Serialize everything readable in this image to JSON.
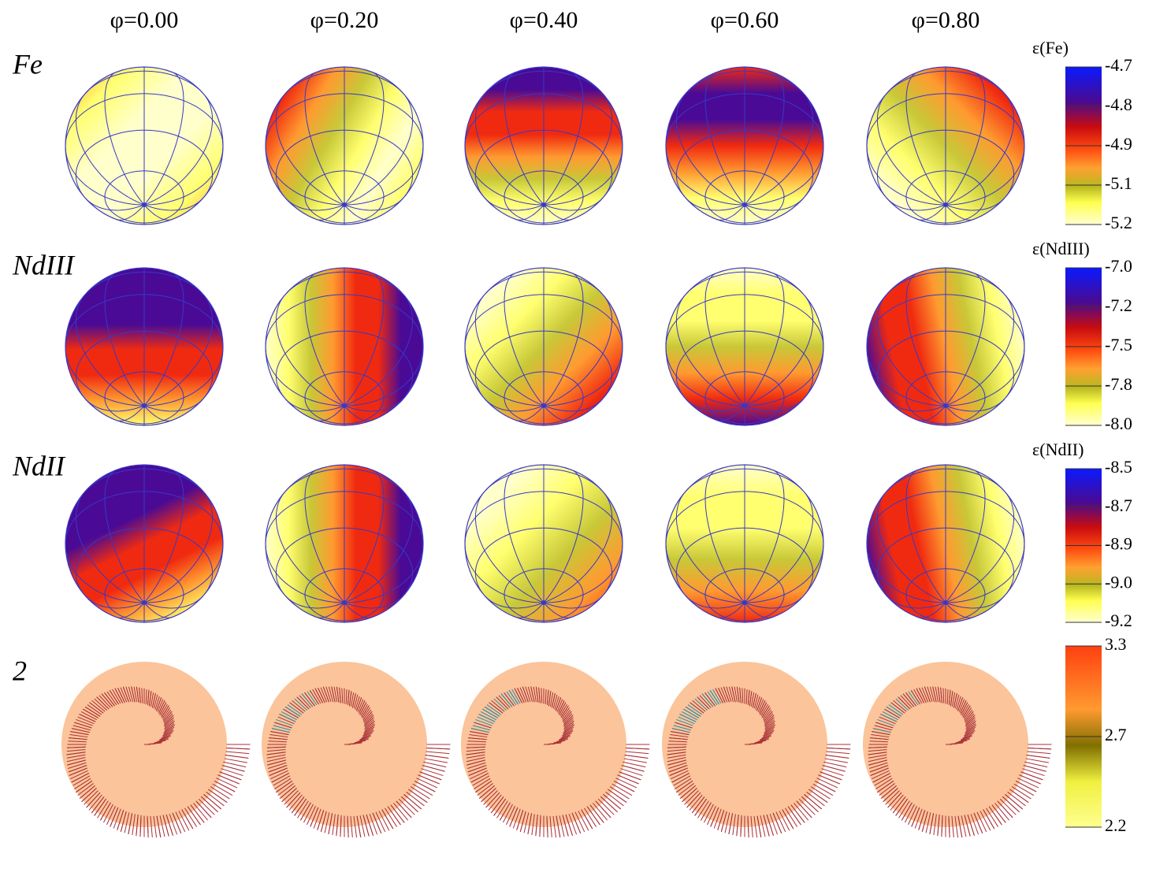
{
  "phases": [
    "φ=0.00",
    "φ=0.20",
    "φ=0.40",
    "φ=0.60",
    "φ=0.80"
  ],
  "rows": [
    {
      "label": "Fe",
      "colorbar": {
        "title": "ε(Fe)",
        "ticks": [
          "-4.7",
          "-4.8",
          "-4.9",
          "-5.1",
          "-5.2"
        ]
      }
    },
    {
      "label": "NdIII",
      "colorbar": {
        "title": "ε(NdIII)",
        "ticks": [
          "-7.0",
          "-7.2",
          "-7.5",
          "-7.8",
          "-8.0"
        ]
      }
    },
    {
      "label": "NdII",
      "colorbar": {
        "title": "ε(NdII)",
        "ticks": [
          "-8.5",
          "-8.7",
          "-8.9",
          "-9.0",
          "-9.2"
        ]
      }
    },
    {
      "label": "2",
      "colorbar": {
        "ticks": [
          "3.3",
          "2.7",
          "2.2"
        ]
      }
    }
  ]
}
